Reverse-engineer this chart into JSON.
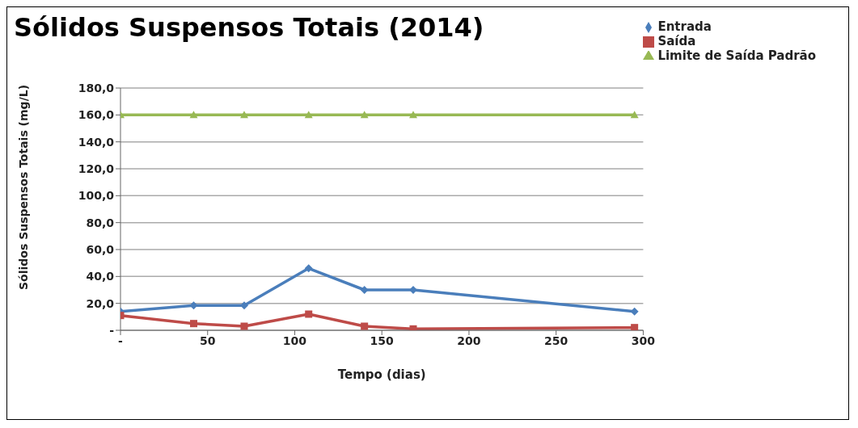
{
  "chart_data": {
    "type": "line",
    "title": "Sólidos Suspensos Totais (2014)",
    "xlabel": "Tempo (dias)",
    "ylabel": "Sólidos Suspensos Totais (mg/L)",
    "x": [
      0,
      42,
      71,
      108,
      140,
      168,
      295
    ],
    "series": [
      {
        "name": "Entrada",
        "color": "#4a7ebb",
        "marker": "diamond",
        "values": [
          14,
          18.5,
          18.5,
          46,
          30,
          30,
          14
        ]
      },
      {
        "name": "Saída",
        "color": "#be4b48",
        "marker": "square",
        "values": [
          11,
          5,
          3,
          12,
          3,
          1,
          2
        ]
      },
      {
        "name": "Limite de Saída Padrão",
        "color": "#98b954",
        "marker": "triangle",
        "values": [
          160,
          160,
          160,
          160,
          160,
          160,
          160
        ]
      }
    ],
    "xlim": [
      0,
      300
    ],
    "xticks": [
      {
        "value": 0,
        "label": "-"
      },
      50,
      100,
      150,
      200,
      250,
      300
    ],
    "ylim": [
      0,
      180
    ],
    "yticks": [
      {
        "value": 0,
        "label": "-"
      },
      {
        "value": 20,
        "label": "20,0"
      },
      {
        "value": 40,
        "label": "40,0"
      },
      {
        "value": 60,
        "label": "60,0"
      },
      {
        "value": 80,
        "label": "80,0"
      },
      {
        "value": 100,
        "label": "100,0"
      },
      {
        "value": 120,
        "label": "120,0"
      },
      {
        "value": 140,
        "label": "140,0"
      },
      {
        "value": 160,
        "label": "160,0"
      },
      {
        "value": 180,
        "label": "180,0"
      }
    ],
    "grid": "y",
    "legend": "top right",
    "line_style": "solid"
  }
}
